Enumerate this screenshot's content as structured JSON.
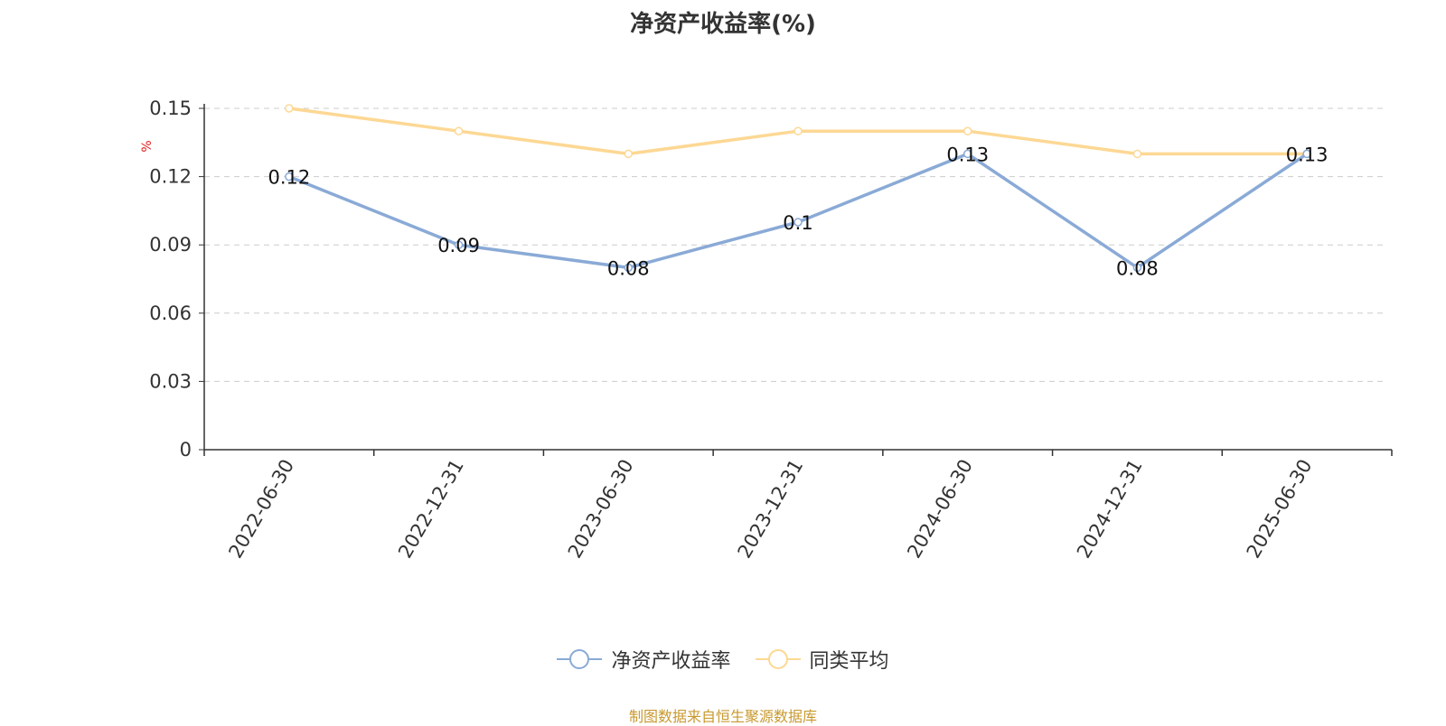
{
  "chart_data": {
    "type": "line",
    "title": "净资产收益率(%)",
    "ylabel": "%",
    "categories": [
      "2022-06-30",
      "2022-12-31",
      "2023-06-30",
      "2023-12-31",
      "2024-06-30",
      "2024-12-31",
      "2025-06-30"
    ],
    "ylim": [
      0,
      0.15
    ],
    "yticks": [
      "0",
      "0.03",
      "0.06",
      "0.09",
      "0.12",
      "0.15"
    ],
    "grid": true,
    "legend_position": "bottom",
    "series": [
      {
        "name": "净资产收益率",
        "color": "#8aaad6",
        "values": [
          0.12,
          0.09,
          0.08,
          0.1,
          0.13,
          0.08,
          0.13
        ],
        "labels": [
          "0.12",
          "0.09",
          "0.08",
          "0.1",
          "0.13",
          "0.08",
          "0.13"
        ]
      },
      {
        "name": "同类平均",
        "color": "#fdd894",
        "values": [
          0.15,
          0.14,
          0.13,
          0.14,
          0.14,
          0.13,
          0.13
        ]
      }
    ]
  },
  "source_note": "制图数据来自恒生聚源数据库"
}
